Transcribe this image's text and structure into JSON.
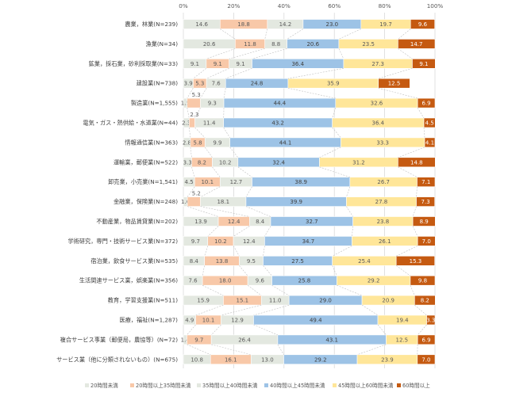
{
  "chart_data": {
    "type": "bar",
    "orientation": "horizontal-stacked-100",
    "x_ticks": [
      "0%",
      "20%",
      "40%",
      "60%",
      "80%",
      "100%"
    ],
    "xlim": [
      0,
      100
    ],
    "categories": [
      "農業，林業(N=239)",
      "漁業(N=34)",
      "鉱業，採石業，砂利採取業(N=33)",
      "建設業(N=738)",
      "製造業(N=1,555)",
      "電気・ガス・熱供給・水道業(N=44)",
      "情報通信業(N=363)",
      "運輸業，郵便業(N=522)",
      "卸売業，小売業(N=1,541)",
      "金融業，保険業(N=248)",
      "不動産業，物品賃貸業(N=202)",
      "学術研究，専門・技術サービス業(N=372)",
      "宿泊業，飲食サービス業(N=535)",
      "生活関連サービス業，娯楽業(N=356)",
      "教育，学習支援業(N=511)",
      "医療，福祉(N=1,287)",
      "複合サービス事業（郵便局，農協等）(N=72)",
      "サービス業（他に分類されないもの）(N=675)"
    ],
    "series": [
      {
        "name": "20時間未満",
        "color": "#e3e8e0",
        "text_color": "#595959",
        "values": [
          14.6,
          20.6,
          9.1,
          3.9,
          1.5,
          2.3,
          2.8,
          3.3,
          4.5,
          1.6,
          13.9,
          9.7,
          8.4,
          7.6,
          15.9,
          4.9,
          1.4,
          10.8
        ]
      },
      {
        "name": "20時間以上35時間未満",
        "color": "#f8c8a8",
        "text_color": "#595959",
        "values": [
          18.8,
          11.8,
          9.1,
          5.3,
          5.3,
          2.3,
          5.8,
          8.2,
          10.1,
          5.2,
          12.4,
          10.2,
          13.8,
          18.0,
          15.1,
          10.1,
          9.7,
          16.1
        ]
      },
      {
        "name": "35時間以上40時間未満",
        "color": "#e3e8e0",
        "text_color": "#595959",
        "values": [
          14.2,
          8.8,
          9.1,
          7.6,
          9.3,
          11.4,
          9.9,
          10.2,
          12.7,
          18.1,
          8.4,
          12.4,
          9.5,
          9.6,
          11.0,
          12.9,
          26.4,
          13.0
        ]
      },
      {
        "name": "40時間以上45時間未満",
        "color": "#9dc3e6",
        "text_color": "#404040",
        "values": [
          23.0,
          20.6,
          36.4,
          24.8,
          44.4,
          43.2,
          44.1,
          32.4,
          38.9,
          39.9,
          32.7,
          34.7,
          27.5,
          25.8,
          29.0,
          49.4,
          43.1,
          29.2
        ]
      },
      {
        "name": "45時間以上60時間未満",
        "color": "#ffe699",
        "text_color": "#595959",
        "values": [
          19.7,
          23.5,
          27.3,
          35.9,
          32.6,
          36.4,
          33.3,
          31.2,
          26.7,
          27.8,
          23.8,
          26.1,
          25.4,
          29.2,
          20.9,
          19.4,
          12.5,
          23.9
        ]
      },
      {
        "name": "60時間以上",
        "color": "#c55a11",
        "text_color": "#ffffff",
        "values": [
          9.6,
          14.7,
          9.1,
          12.5,
          6.9,
          4.5,
          4.1,
          14.8,
          7.1,
          7.3,
          8.9,
          7.0,
          15.3,
          9.8,
          8.2,
          3.3,
          6.9,
          7.0
        ]
      }
    ],
    "outside_labels": [
      {
        "row": 4,
        "series": 1,
        "text": "5.3"
      },
      {
        "row": 5,
        "series": 1,
        "text": "2.3"
      },
      {
        "row": 9,
        "series": 1,
        "text": "5.2"
      }
    ],
    "legend_position": "bottom"
  }
}
